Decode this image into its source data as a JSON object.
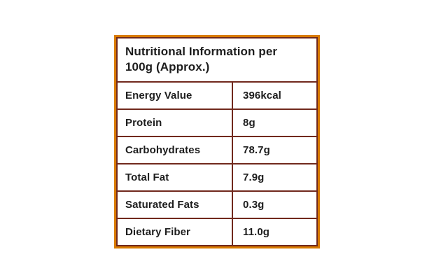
{
  "table": {
    "title": "Nutritional Information per 100g (Approx.)",
    "title_line1": "Nutritional Information per",
    "title_line2": "100g (Approx.)",
    "rows": [
      {
        "label": "Energy Value",
        "value": "396kcal"
      },
      {
        "label": "Protein",
        "value": "8g"
      },
      {
        "label": "Carbohydrates",
        "value": "78.7g"
      },
      {
        "label": "Total Fat",
        "value": "7.9g"
      },
      {
        "label": "Saturated Fats",
        "value": "0.3g"
      },
      {
        "label": "Dietary Fiber",
        "value": "11.0g"
      }
    ],
    "colors": {
      "outer_border": "#D97B00",
      "inner_border": "#71291D",
      "text": "#1D1D1D",
      "cell_background": "#FFFFFF",
      "page_background": "#FFFFFF"
    }
  }
}
